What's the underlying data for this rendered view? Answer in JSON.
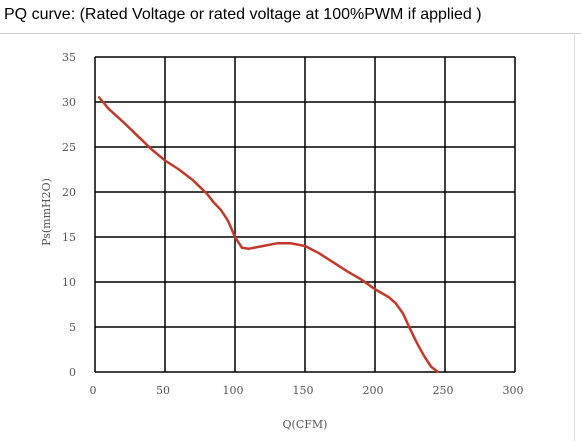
{
  "header": {
    "title": "PQ curve: (Rated Voltage or rated voltage at 100%PWM if applied )"
  },
  "chart_data": {
    "type": "line",
    "title": "PQ curve: (Rated Voltage or rated voltage at 100%PWM if applied )",
    "xlabel": "Q(CFM)",
    "ylabel": "Ps(mmH2O)",
    "xlim": [
      0,
      300
    ],
    "ylim": [
      0,
      35
    ],
    "xticks": [
      0,
      50,
      100,
      150,
      200,
      250,
      300
    ],
    "yticks": [
      0,
      5,
      10,
      15,
      20,
      25,
      30,
      35
    ],
    "grid": true,
    "series": [
      {
        "color": "#c0392b",
        "x": [
          3,
          10,
          20,
          30,
          40,
          50,
          60,
          70,
          80,
          85,
          90,
          95,
          100,
          105,
          110,
          120,
          130,
          140,
          150,
          160,
          170,
          180,
          190,
          200,
          210,
          215,
          220,
          225,
          230,
          235,
          240,
          245
        ],
        "y": [
          30.5,
          29.2,
          27.8,
          26.3,
          24.8,
          23.5,
          22.5,
          21.3,
          19.8,
          18.8,
          18.0,
          16.8,
          15.0,
          13.8,
          13.7,
          14.0,
          14.3,
          14.3,
          14.0,
          13.2,
          12.2,
          11.2,
          10.3,
          9.2,
          8.3,
          7.6,
          6.5,
          4.8,
          3.2,
          1.8,
          0.6,
          0
        ]
      }
    ]
  }
}
